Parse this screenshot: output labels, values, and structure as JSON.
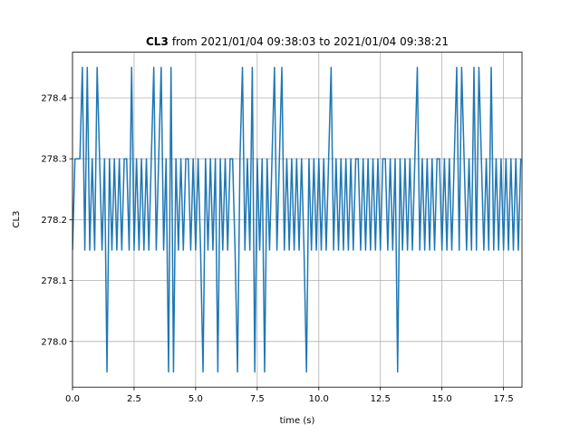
{
  "chart_data": {
    "type": "line",
    "title_variable": "CL3",
    "title": "from 2021/01/04 09:38:03 to 2021/01/04 09:38:21",
    "xlabel": "time (s)",
    "ylabel": "CL3",
    "xlim": [
      0,
      18.25
    ],
    "ylim": [
      277.925,
      278.475
    ],
    "xticks": [
      {
        "value": 0,
        "label": "0.0"
      },
      2.5,
      {
        "value": 5,
        "label": "5.0"
      },
      7.5,
      {
        "value": 10,
        "label": "10.0"
      },
      12.5,
      {
        "value": 15,
        "label": "15.0"
      },
      17.5
    ],
    "yticks": [
      {
        "value": 278,
        "label": "278.0"
      },
      278.1,
      278.2,
      278.3,
      278.4
    ],
    "grid": true,
    "x": [
      0,
      0.1,
      0.2,
      0.3,
      0.4,
      0.5,
      0.6,
      0.7,
      0.8,
      0.9,
      1,
      1.1,
      1.2,
      1.3,
      1.4,
      1.5,
      1.6,
      1.7,
      1.8,
      1.9,
      2,
      2.1,
      2.2,
      2.3,
      2.4,
      2.5,
      2.6,
      2.7,
      2.8,
      2.9,
      3,
      3.1,
      3.2,
      3.3,
      3.4,
      3.5,
      3.6,
      3.7,
      3.8,
      3.9,
      4,
      4.1,
      4.2,
      4.3,
      4.4,
      4.5,
      4.6,
      4.7,
      4.8,
      4.9,
      5,
      5.1,
      5.2,
      5.3,
      5.4,
      5.5,
      5.6,
      5.7,
      5.8,
      5.9,
      6,
      6.1,
      6.2,
      6.3,
      6.4,
      6.5,
      6.6,
      6.7,
      6.8,
      6.9,
      7,
      7.1,
      7.2,
      7.3,
      7.4,
      7.5,
      7.6,
      7.7,
      7.8,
      7.9,
      8,
      8.1,
      8.2,
      8.3,
      8.4,
      8.5,
      8.6,
      8.7,
      8.8,
      8.9,
      9,
      9.1,
      9.2,
      9.3,
      9.4,
      9.5,
      9.6,
      9.7,
      9.8,
      9.9,
      10,
      10.1,
      10.2,
      10.3,
      10.4,
      10.5,
      10.6,
      10.7,
      10.8,
      10.9,
      11,
      11.1,
      11.2,
      11.3,
      11.4,
      11.5,
      11.6,
      11.7,
      11.8,
      11.9,
      12,
      12.1,
      12.2,
      12.3,
      12.4,
      12.5,
      12.6,
      12.7,
      12.8,
      12.9,
      13,
      13.1,
      13.2,
      13.3,
      13.4,
      13.5,
      13.6,
      13.7,
      13.8,
      13.9,
      14,
      14.1,
      14.2,
      14.3,
      14.4,
      14.5,
      14.6,
      14.7,
      14.8,
      14.9,
      15,
      15.1,
      15.2,
      15.3,
      15.4,
      15.5,
      15.6,
      15.7,
      15.8,
      15.9,
      16,
      16.1,
      16.2,
      16.3,
      16.4,
      16.5,
      16.6,
      16.7,
      16.8,
      16.9,
      17,
      17.1,
      17.2,
      17.3,
      17.4,
      17.5,
      17.6,
      17.7,
      17.8,
      17.9,
      18,
      18.1,
      18.2
    ],
    "series": [
      {
        "name": "CL3",
        "color": "#1f77b4",
        "values": [
          278.15,
          278.3,
          278.3,
          278.3,
          278.45,
          278.15,
          278.45,
          278.15,
          278.3,
          278.15,
          278.45,
          278.3,
          278.15,
          278.3,
          277.95,
          278.3,
          278.15,
          278.3,
          278.15,
          278.3,
          278.15,
          278.3,
          278.3,
          278.15,
          278.45,
          278.15,
          278.3,
          278.15,
          278.3,
          278.15,
          278.3,
          278.15,
          278.3,
          278.45,
          278.15,
          278.3,
          278.45,
          278.15,
          278.3,
          277.95,
          278.45,
          277.95,
          278.3,
          278.15,
          278.3,
          278.15,
          278.3,
          278.3,
          278.15,
          278.3,
          278.15,
          278.3,
          278.15,
          277.95,
          278.3,
          278.15,
          278.3,
          278.15,
          278.3,
          277.95,
          278.3,
          278.15,
          278.3,
          278.15,
          278.3,
          278.3,
          278.15,
          277.95,
          278.3,
          278.45,
          278.15,
          278.3,
          278.15,
          278.45,
          277.95,
          278.3,
          278.15,
          278.3,
          277.95,
          278.3,
          278.15,
          278.3,
          278.45,
          278.15,
          278.3,
          278.45,
          278.15,
          278.3,
          278.15,
          278.3,
          278.15,
          278.3,
          278.15,
          278.3,
          278.15,
          277.95,
          278.3,
          278.15,
          278.3,
          278.15,
          278.3,
          278.15,
          278.3,
          278.15,
          278.3,
          278.45,
          278.15,
          278.3,
          278.15,
          278.3,
          278.15,
          278.3,
          278.15,
          278.3,
          278.15,
          278.3,
          278.3,
          278.15,
          278.3,
          278.15,
          278.3,
          278.15,
          278.3,
          278.15,
          278.3,
          278.15,
          278.3,
          278.3,
          278.15,
          278.3,
          278.15,
          278.3,
          277.95,
          278.3,
          278.15,
          278.3,
          278.15,
          278.3,
          278.15,
          278.3,
          278.45,
          278.15,
          278.3,
          278.15,
          278.3,
          278.15,
          278.3,
          278.15,
          278.3,
          278.3,
          278.15,
          278.3,
          278.15,
          278.3,
          278.15,
          278.3,
          278.45,
          278.15,
          278.45,
          278.3,
          278.15,
          278.3,
          278.15,
          278.45,
          278.15,
          278.45,
          278.3,
          278.15,
          278.3,
          278.15,
          278.45,
          278.15,
          278.3,
          278.15,
          278.3,
          278.15,
          278.3,
          278.15,
          278.3,
          278.15,
          278.3,
          278.15,
          278.3
        ]
      }
    ]
  }
}
